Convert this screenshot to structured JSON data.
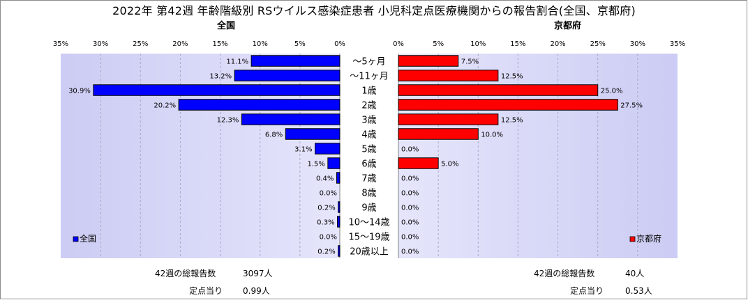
{
  "title": "2022年 第42週 年齢階級別 RSウイルス感染症患者 小児科定点医療機関からの報告割合(全国、京都府)",
  "chart_data": {
    "type": "bar",
    "categories": [
      "～5ヶ月",
      "～11ヶ月",
      "1歳",
      "2歳",
      "3歳",
      "4歳",
      "5歳",
      "6歳",
      "7歳",
      "8歳",
      "9歳",
      "10～14歳",
      "15～19歳",
      "20歳以上"
    ],
    "xlim": [
      0,
      35
    ],
    "xticks": [
      "35%",
      "30%",
      "25%",
      "20%",
      "15%",
      "10%",
      "5%",
      "0%"
    ],
    "xticks_right": [
      "0%",
      "5%",
      "10%",
      "15%",
      "20%",
      "25%",
      "30%",
      "35%"
    ],
    "series": [
      {
        "name": "全国",
        "subtitle": "全国",
        "color": "#0000ff",
        "values": [
          11.1,
          13.2,
          30.9,
          20.2,
          12.3,
          6.8,
          3.1,
          1.5,
          0.4,
          0.0,
          0.2,
          0.3,
          0.0,
          0.2
        ],
        "labels": [
          "11.1%",
          "13.2%",
          "30.9%",
          "20.2%",
          "12.3%",
          "6.8%",
          "3.1%",
          "1.5%",
          "0.4%",
          "0.0%",
          "0.2%",
          "0.3%",
          "0.0%",
          "0.2%"
        ]
      },
      {
        "name": "京都府",
        "subtitle": "京都府",
        "color": "#ff0000",
        "values": [
          7.5,
          12.5,
          25.0,
          27.5,
          12.5,
          10.0,
          0.0,
          5.0,
          0.0,
          0.0,
          0.0,
          0.0,
          0.0,
          0.0
        ],
        "labels": [
          "7.5%",
          "12.5%",
          "25.0%",
          "27.5%",
          "12.5%",
          "10.0%",
          "0.0%",
          "5.0%",
          "0.0%",
          "0.0%",
          "0.0%",
          "0.0%",
          "0.0%",
          "0.0%"
        ]
      }
    ],
    "grid": true,
    "legend_position": "bottom-inside"
  },
  "footer": {
    "national": {
      "total_label": "42週の総報告数",
      "total_value": "3097人",
      "per_label": "定点当り",
      "per_value": "0.99人"
    },
    "kyoto": {
      "total_label": "42週の総報告数",
      "total_value": "40人",
      "per_label": "定点当り",
      "per_value": "0.53人"
    }
  }
}
